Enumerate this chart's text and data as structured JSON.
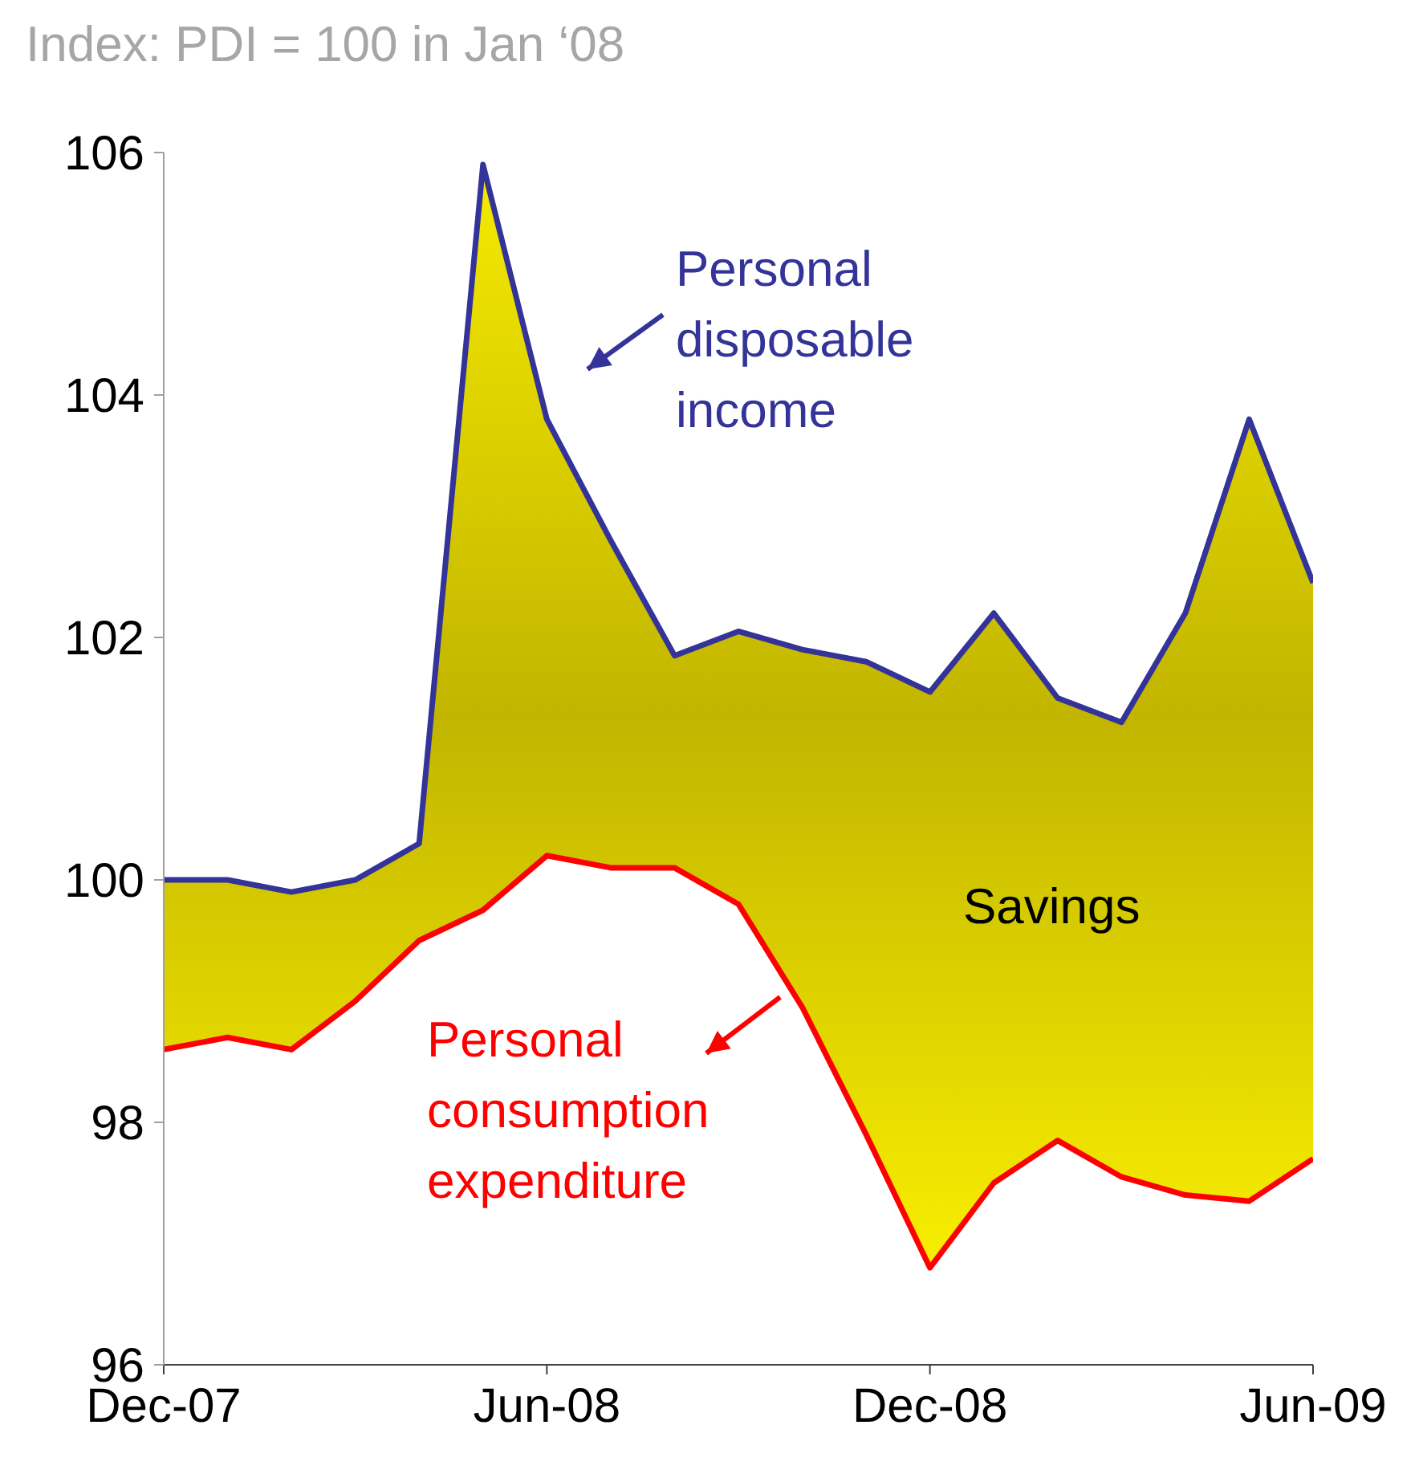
{
  "chart_data": {
    "type": "area",
    "title": "Index: PDI = 100 in Jan ‘08",
    "x": [
      "2007-12",
      "2008-01",
      "2008-02",
      "2008-03",
      "2008-04",
      "2008-05",
      "2008-06",
      "2008-07",
      "2008-08",
      "2008-09",
      "2008-10",
      "2008-11",
      "2008-12",
      "2009-01",
      "2009-02",
      "2009-03",
      "2009-04",
      "2009-05",
      "2009-06"
    ],
    "series": [
      {
        "name": "Personal disposable income",
        "type": "area",
        "color": "#333399",
        "values": [
          100.0,
          100.0,
          99.9,
          100.0,
          100.3,
          105.9,
          103.8,
          102.8,
          101.85,
          102.05,
          101.9,
          101.8,
          101.55,
          102.2,
          101.5,
          101.3,
          102.2,
          103.8,
          102.45
        ]
      },
      {
        "name": "Personal consumption expenditure",
        "type": "line",
        "color": "#ff0000",
        "values": [
          98.6,
          98.7,
          98.6,
          99.0,
          99.5,
          99.75,
          100.2,
          100.1,
          100.1,
          99.8,
          98.95,
          97.9,
          96.8,
          97.5,
          97.85,
          97.55,
          97.4,
          97.35,
          97.7
        ]
      }
    ],
    "annotations": [
      "Savings"
    ],
    "xlim": [
      "2007-12",
      "2009-06"
    ],
    "xticks": [
      {
        "value": "2007-12",
        "label": "Dec-07"
      },
      {
        "value": "2008-06",
        "label": "Jun-08"
      },
      {
        "value": "2008-12",
        "label": "Dec-08"
      },
      {
        "value": "2009-06",
        "label": "Jun-09"
      }
    ],
    "ylim": [
      96,
      106
    ],
    "yticks": [
      96,
      98,
      100,
      102,
      104,
      106
    ],
    "grid": false,
    "legend": "top right",
    "marker": "none",
    "line_style": "solid"
  }
}
